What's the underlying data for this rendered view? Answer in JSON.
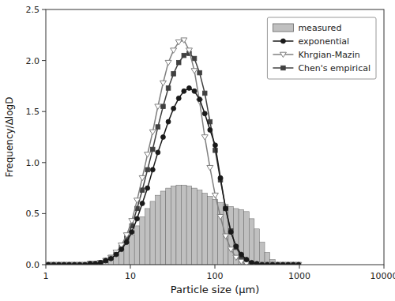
{
  "chart_data": {
    "type": "histogram",
    "xlabel": "Particle size (μm)",
    "ylabel": "Frequency/ΔlogD",
    "log": "x",
    "xlim": [
      1,
      10000
    ],
    "xticks": [
      1,
      10,
      100,
      1000,
      10000
    ],
    "ylim": [
      0,
      2.5
    ],
    "yticks": [
      {
        "value": 0,
        "label": "0.0"
      },
      0.5,
      {
        "value": 1,
        "label": "1.0"
      },
      1.5,
      {
        "value": 2,
        "label": "2.0"
      },
      2.5
    ],
    "legend": "upper right",
    "series": [
      {
        "name": "measured",
        "type": "histogram",
        "color": "#c0c0c0",
        "bins": [
          1.0,
          1.15,
          1.33,
          1.53,
          1.76,
          2.03,
          2.34,
          2.7,
          3.11,
          3.59,
          4.13,
          4.76,
          5.49,
          6.33,
          7.3,
          8.41,
          9.7,
          11.18,
          12.89,
          14.85,
          17.12,
          19.72,
          22.73,
          26.2,
          30.2,
          34.79,
          40.1,
          46.22,
          53.27,
          61.4,
          70.77,
          81.57,
          94.02,
          108.37,
          124.87,
          143.89,
          165.83,
          191.08,
          220.22,
          253.74,
          292.34,
          336.82,
          388.14,
          447.36,
          515.61,
          594.3,
          685.01,
          789.37,
          909.74,
          1048.11
        ],
        "values": [
          0.0,
          0.0,
          0.0,
          0.0,
          0.0,
          0.0,
          0.0,
          0.0,
          0.01,
          0.02,
          0.03,
          0.05,
          0.08,
          0.12,
          0.17,
          0.22,
          0.29,
          0.38,
          0.47,
          0.55,
          0.62,
          0.68,
          0.72,
          0.75,
          0.77,
          0.78,
          0.78,
          0.77,
          0.75,
          0.73,
          0.7,
          0.67,
          0.64,
          0.61,
          0.59,
          0.57,
          0.55,
          0.54,
          0.52,
          0.45,
          0.35,
          0.22,
          0.12,
          0.05,
          0.02,
          0.01,
          0.0,
          0.0,
          0.0
        ]
      },
      {
        "name": "exponential",
        "type": "line",
        "color": "#1a1a1a",
        "marker": "circle",
        "x": [
          1.072,
          1.237,
          1.426,
          1.641,
          1.89,
          2.179,
          2.514,
          2.898,
          3.341,
          3.851,
          4.434,
          5.112,
          5.895,
          6.798,
          7.835,
          9.032,
          10.414,
          12.005,
          13.835,
          15.945,
          18.374,
          21.172,
          24.403,
          28.129,
          32.414,
          37.351,
          43.051,
          49.62,
          57.191,
          65.919,
          75.978,
          87.574,
          100.94,
          116.328,
          134.043,
          154.471,
          178.008,
          205.133,
          236.387,
          272.357,
          313.793,
          361.571,
          416.699,
          480.274,
          553.559,
          638.045,
          735.341,
          847.42,
          976.477
        ],
        "values": [
          0.0,
          0.0,
          0.0,
          0.0,
          0.0,
          0.0,
          0.0,
          0.0,
          0.01,
          0.01,
          0.02,
          0.04,
          0.06,
          0.1,
          0.15,
          0.22,
          0.32,
          0.45,
          0.6,
          0.75,
          0.93,
          1.1,
          1.25,
          1.4,
          1.53,
          1.63,
          1.7,
          1.73,
          1.7,
          1.62,
          1.48,
          1.32,
          1.17,
          0.85,
          0.55,
          0.32,
          0.18,
          0.1,
          0.05,
          0.02,
          0.01,
          0.0,
          0.0,
          0.0,
          0.0,
          0.0,
          0.0,
          0.0,
          0.0
        ]
      },
      {
        "name": "Khrgian-Mazin",
        "type": "line",
        "color": "#808080",
        "marker": "triangle-down",
        "x": [
          1.072,
          1.237,
          1.426,
          1.641,
          1.89,
          2.179,
          2.514,
          2.898,
          3.341,
          3.851,
          4.434,
          5.112,
          5.895,
          6.798,
          7.835,
          9.032,
          10.414,
          12.005,
          13.835,
          15.945,
          18.374,
          21.172,
          24.403,
          28.129,
          32.414,
          37.351,
          43.051,
          49.62,
          57.191,
          65.919,
          75.978,
          87.574,
          100.94,
          116.328,
          134.043,
          154.471,
          178.008,
          205.133,
          236.387,
          272.357,
          313.793,
          361.571,
          416.699,
          480.274,
          553.559,
          638.045,
          735.341,
          847.42,
          976.477
        ],
        "values": [
          0.0,
          0.0,
          0.0,
          0.0,
          0.0,
          0.0,
          0.0,
          0.0,
          0.01,
          0.01,
          0.02,
          0.04,
          0.07,
          0.12,
          0.19,
          0.29,
          0.43,
          0.63,
          0.85,
          1.08,
          1.3,
          1.55,
          1.78,
          1.98,
          2.1,
          2.18,
          2.2,
          2.1,
          1.9,
          1.6,
          1.25,
          0.95,
          0.68,
          0.47,
          0.28,
          0.15,
          0.07,
          0.03,
          0.01,
          0.0,
          0.0,
          0.0,
          0.0,
          0.0,
          0.0,
          0.0,
          0.0,
          0.0,
          0.0
        ]
      },
      {
        "name": "Chen's empirical",
        "type": "line",
        "color": "#404040",
        "marker": "square",
        "x": [
          1.072,
          1.237,
          1.426,
          1.641,
          1.89,
          2.179,
          2.514,
          2.898,
          3.341,
          3.851,
          4.434,
          5.112,
          5.895,
          6.798,
          7.835,
          9.032,
          10.414,
          12.005,
          13.835,
          15.945,
          18.374,
          21.172,
          24.403,
          28.129,
          32.414,
          37.351,
          43.051,
          49.62,
          57.191,
          65.919,
          75.978,
          87.574,
          100.94,
          116.328,
          134.043,
          154.471,
          178.008,
          205.133,
          236.387,
          272.357,
          313.793,
          361.571,
          416.699,
          480.274,
          553.559,
          638.045,
          735.341,
          847.42,
          976.477
        ],
        "values": [
          0.0,
          0.0,
          0.0,
          0.0,
          0.0,
          0.0,
          0.0,
          0.0,
          0.01,
          0.01,
          0.02,
          0.04,
          0.07,
          0.11,
          0.17,
          0.26,
          0.38,
          0.55,
          0.73,
          0.93,
          1.13,
          1.35,
          1.55,
          1.73,
          1.87,
          1.98,
          2.05,
          2.07,
          2.02,
          1.88,
          1.68,
          1.4,
          1.12,
          0.83,
          0.55,
          0.33,
          0.17,
          0.08,
          0.03,
          0.01,
          0.0,
          0.0,
          0.0,
          0.0,
          0.0,
          0.0,
          0.0,
          0.0,
          0.0
        ]
      }
    ]
  }
}
